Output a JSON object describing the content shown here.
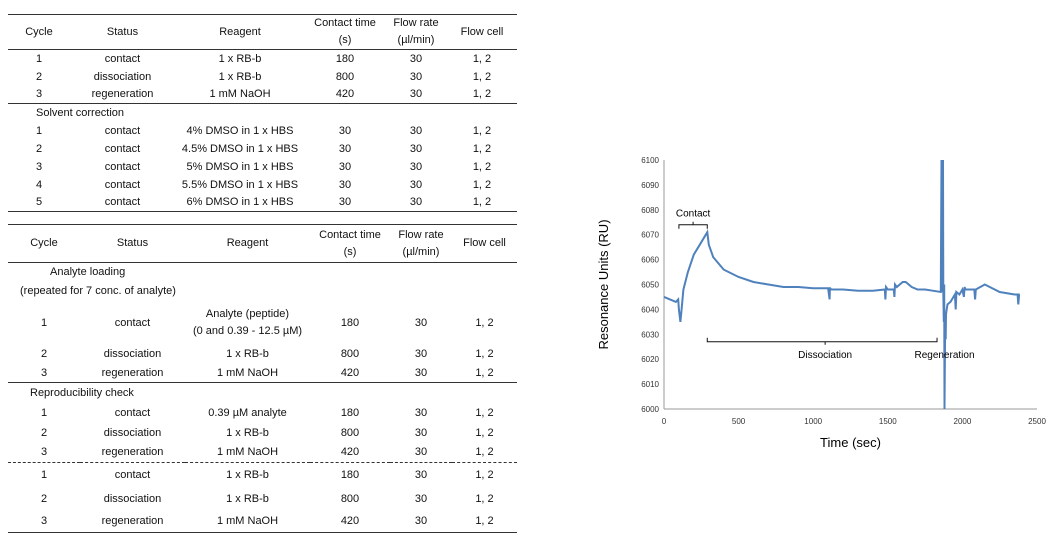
{
  "table1": {
    "headers": {
      "cycle": "Cycle",
      "status": "Status",
      "reagent": "Reagent",
      "contact_line1": "Contact time",
      "contact_line2": "(s)",
      "flow_line1": "Flow rate",
      "flow_line2": "(µl/min)",
      "flowcell": "Flow cell"
    },
    "rows": [
      [
        "1",
        "contact",
        "1 x RB-b",
        "180",
        "30",
        "1, 2"
      ],
      [
        "2",
        "dissociation",
        "1 x RB-b",
        "800",
        "30",
        "1, 2"
      ],
      [
        "3",
        "regeneration",
        "1 mM NaOH",
        "420",
        "30",
        "1, 2"
      ]
    ],
    "section_label": "Solvent correction",
    "rows2": [
      [
        "1",
        "contact",
        "4% DMSO in 1 x HBS",
        "30",
        "30",
        "1, 2"
      ],
      [
        "2",
        "contact",
        "4.5% DMSO in 1 x HBS",
        "30",
        "30",
        "1, 2"
      ],
      [
        "3",
        "contact",
        "5% DMSO in 1 x HBS",
        "30",
        "30",
        "1, 2"
      ],
      [
        "4",
        "contact",
        "5.5% DMSO in 1 x HBS",
        "30",
        "30",
        "1, 2"
      ],
      [
        "5",
        "contact",
        "6% DMSO in 1 x HBS",
        "30",
        "30",
        "1, 2"
      ]
    ]
  },
  "table2": {
    "headers": {
      "cycle": "Cycle",
      "status": "Status",
      "reagent": "Reagent",
      "contact_line1": "Contact time",
      "contact_line2": "(s)",
      "flow_line1": "Flow rate",
      "flow_line2": "(µl/min)",
      "flowcell": "Flow cell"
    },
    "section1_line1": "Analyte loading",
    "section1_line2": "(repeated for 7 conc. of analyte)",
    "rows1": [
      [
        "1",
        "contact",
        "Analyte (peptide)",
        "(0 and 0.39 - 12.5 µM)",
        "180",
        "30",
        "1, 2"
      ],
      [
        "2",
        "dissociation",
        "1 x RB-b",
        "",
        "800",
        "30",
        "1, 2"
      ],
      [
        "3",
        "regeneration",
        "1 mM NaOH",
        "",
        "420",
        "30",
        "1, 2"
      ]
    ],
    "section2_label": "Reproducibility check",
    "rows2": [
      [
        "1",
        "contact",
        "0.39 µM analyte",
        "180",
        "30",
        "1, 2"
      ],
      [
        "2",
        "dissociation",
        "1 x RB-b",
        "800",
        "30",
        "1, 2"
      ],
      [
        "3",
        "regeneration",
        "1 mM NaOH",
        "420",
        "30",
        "1, 2"
      ]
    ],
    "rows3": [
      [
        "1",
        "contact",
        "1 x RB-b",
        "180",
        "30",
        "1, 2"
      ],
      [
        "2",
        "dissociation",
        "1 x RB-b",
        "800",
        "30",
        "1, 2"
      ],
      [
        "3",
        "regeneration",
        "1 mM NaOH",
        "420",
        "30",
        "1, 2"
      ]
    ]
  },
  "chart_data": {
    "type": "line",
    "xlabel": "Time (sec)",
    "ylabel": "Resonance Units (RU)",
    "xlim": [
      0,
      2500
    ],
    "ylim": [
      6000,
      6100
    ],
    "xticks": [
      0,
      500,
      1000,
      1500,
      2000,
      2500
    ],
    "yticks": [
      6000,
      6010,
      6020,
      6030,
      6040,
      6050,
      6060,
      6070,
      6080,
      6090,
      6100
    ],
    "line_color": "#4f81bd",
    "annotations": {
      "contact": "Contact",
      "dissociation": "Dissociation",
      "regeneration": "Regeneration"
    },
    "series": [
      {
        "x": [
          0,
          40,
          80,
          95,
          100,
          110,
          118,
          130,
          160,
          200,
          240,
          270,
          290,
          300,
          330,
          400,
          500,
          600,
          700,
          800,
          900,
          1000,
          1100,
          1110,
          1112,
          1114,
          1120,
          1200,
          1300,
          1400,
          1480,
          1484,
          1488,
          1500,
          1540,
          1544,
          1548,
          1560,
          1600,
          1620,
          1660,
          1700,
          1750,
          1800,
          1855,
          1860,
          1865,
          1870,
          1872,
          1875,
          1878,
          1880,
          1885,
          1888,
          1890,
          1895,
          1900,
          1920,
          1950,
          1955,
          1960,
          1980,
          2000,
          2010,
          2015,
          2020,
          2060,
          2080,
          2085,
          2090,
          2150,
          2250,
          2350,
          2370,
          2375,
          2380,
          2385
        ],
        "y": [
          6045,
          6044,
          6043,
          6044,
          6040,
          6035,
          6040,
          6048,
          6055,
          6062,
          6066,
          6069,
          6071,
          6066,
          6061,
          6056,
          6053,
          6051,
          6050,
          6049,
          6049,
          6048.5,
          6048.5,
          6044,
          6048.5,
          6048.5,
          6048,
          6048,
          6047.5,
          6047.5,
          6048,
          6044,
          6049,
          6048,
          6048,
          6045,
          6050,
          6049,
          6051,
          6051,
          6049,
          6048,
          6048,
          6047.5,
          6047,
          6100,
          6047,
          6100,
          6047,
          6035,
          6050,
          6000,
          6037,
          6028,
          6038,
          6040,
          6042,
          6043,
          6046,
          6040,
          6047,
          6046,
          6048,
          6045,
          6049,
          6048,
          6048,
          6048,
          6044,
          6048,
          6050,
          6047,
          6046,
          6046,
          6042,
          6046,
          6046
        ]
      }
    ]
  }
}
